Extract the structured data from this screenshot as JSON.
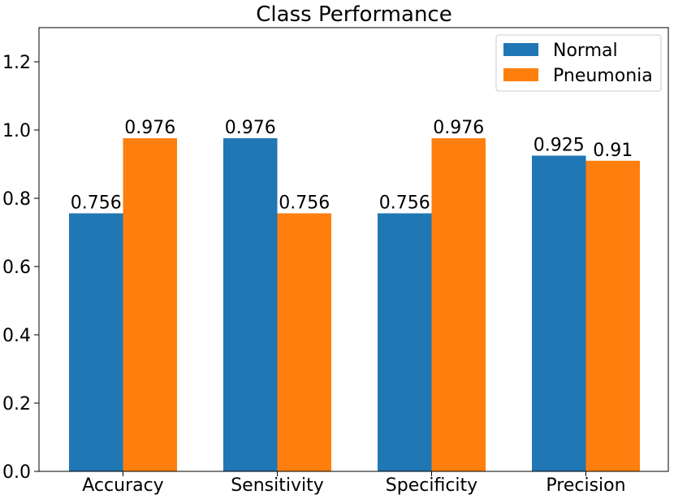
{
  "chart_data": {
    "type": "bar",
    "title": "Class Performance",
    "xlabel": "",
    "ylabel": "",
    "categories": [
      "Accuracy",
      "Sensitivity",
      "Specificity",
      "Precision"
    ],
    "series": [
      {
        "name": "Normal",
        "values": [
          0.756,
          0.976,
          0.756,
          0.925
        ],
        "labels": [
          "0.756",
          "0.976",
          "0.756",
          "0.925"
        ],
        "color": "#1f77b4"
      },
      {
        "name": "Pneumonia",
        "values": [
          0.976,
          0.756,
          0.976,
          0.91
        ],
        "labels": [
          "0.976",
          "0.756",
          "0.976",
          "0.91"
        ],
        "color": "#ff7f0e"
      }
    ],
    "ylim": [
      0,
      1.3
    ],
    "yticks": [
      0.0,
      0.2,
      0.4,
      0.6,
      0.8,
      1.0,
      1.2
    ],
    "ytick_labels": [
      "0.0",
      "0.2",
      "0.4",
      "0.6",
      "0.8",
      "1.0",
      "1.2"
    ],
    "grid": false,
    "legend_position": "top-right"
  }
}
